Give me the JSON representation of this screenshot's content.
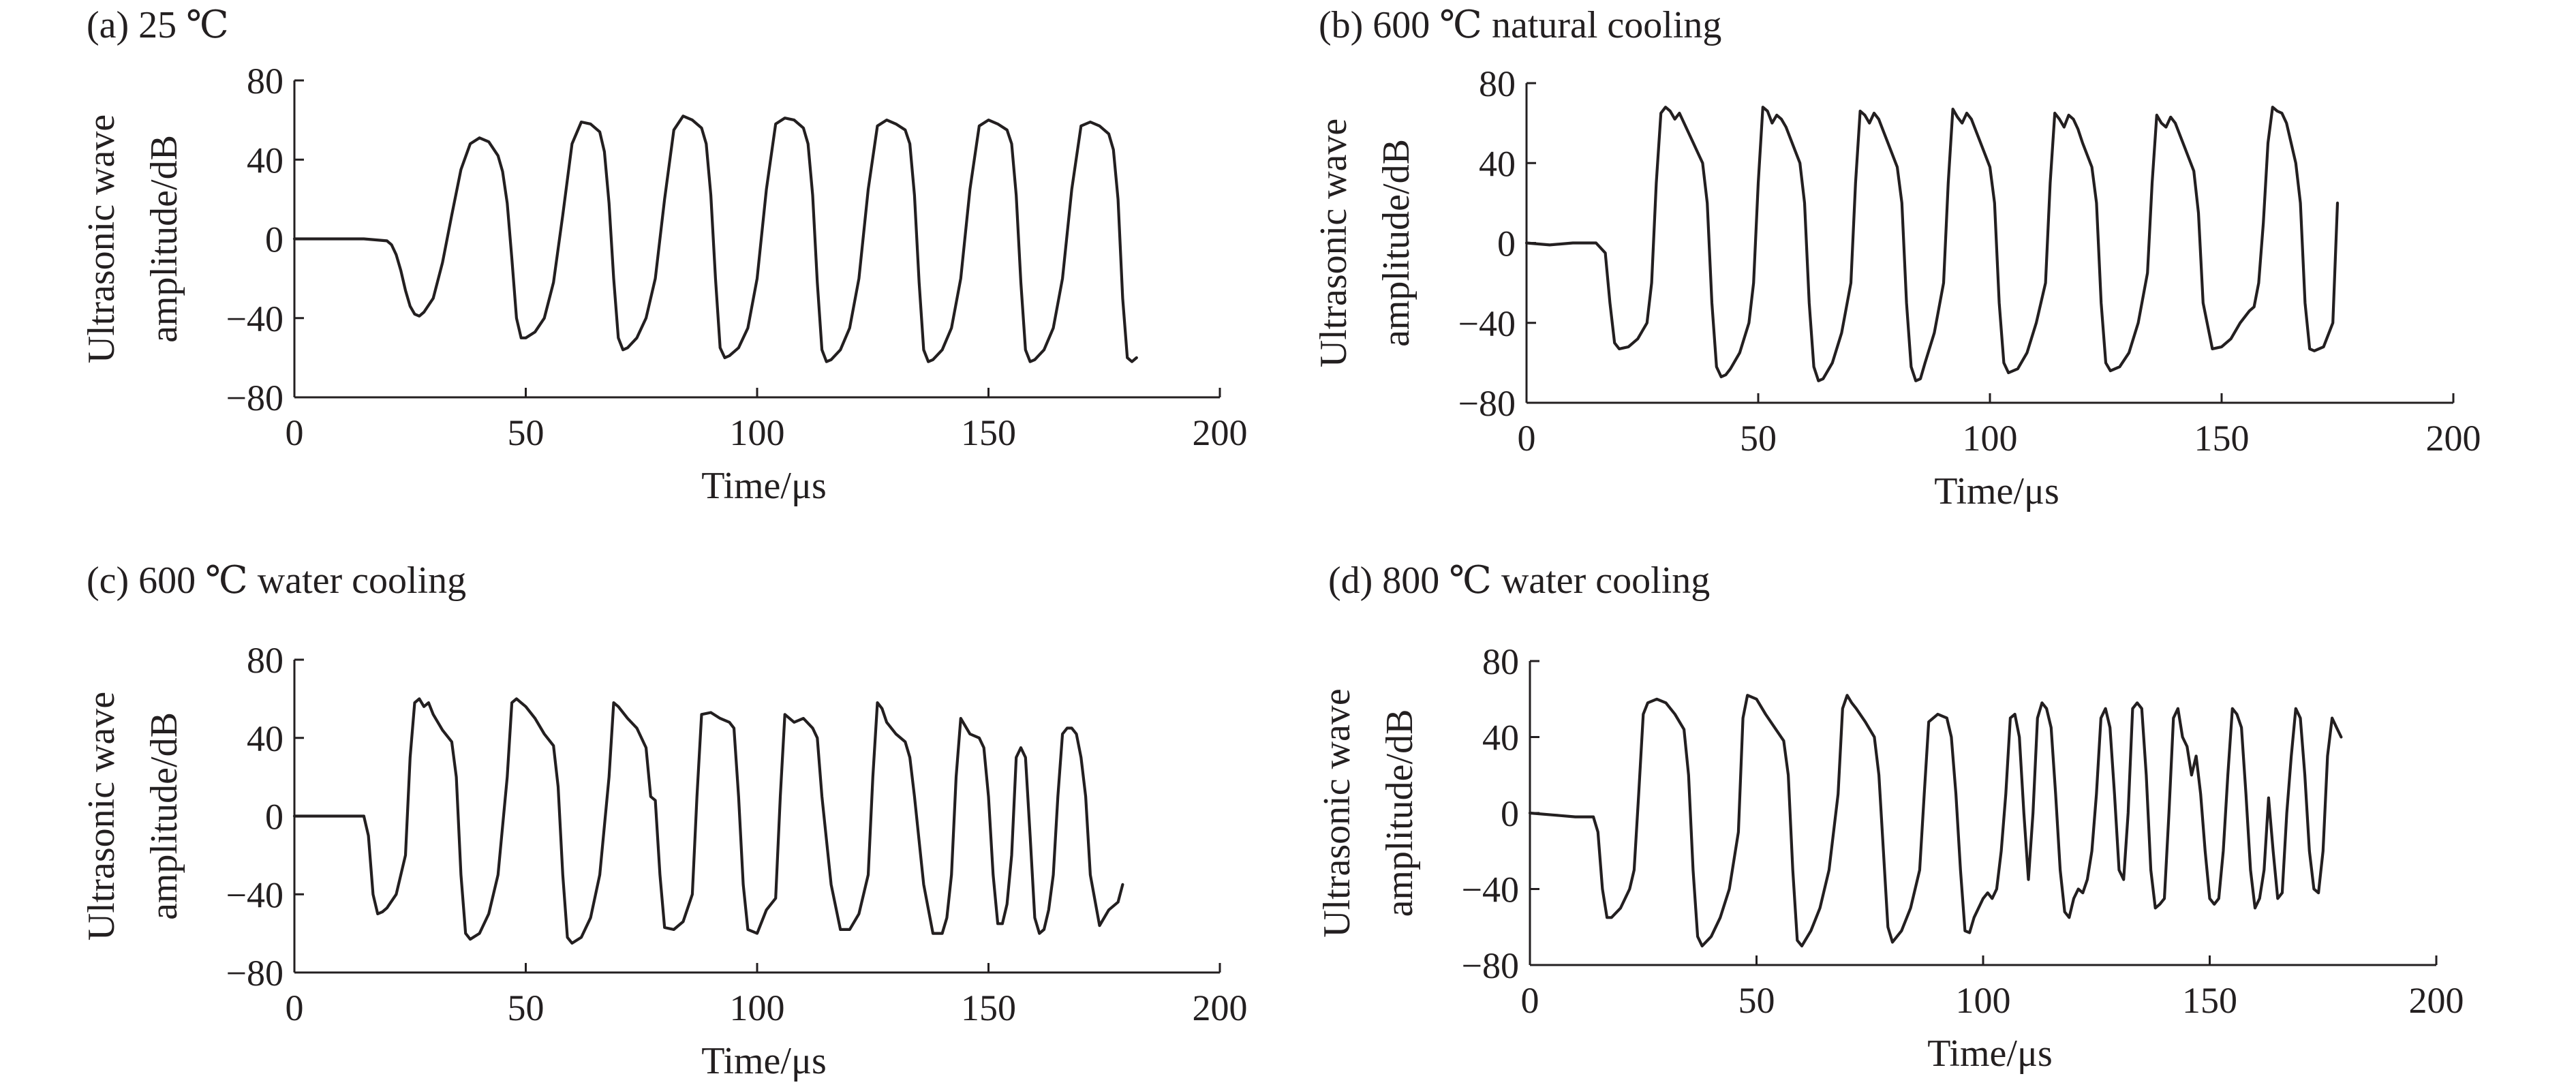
{
  "line_color": "#231f20",
  "background": "#ffffff",
  "chart_data": [
    {
      "type": "line",
      "title": "(a) 25 ℃",
      "xlabel": "Time/μs",
      "ylabel": [
        "Ultrasonic wave",
        "amplitude/dB"
      ],
      "xlim": [
        0,
        200
      ],
      "ylim": [
        -80,
        80
      ],
      "xticks": [
        0,
        50,
        100,
        150,
        200
      ],
      "yticks": [
        -80,
        -40,
        0,
        40,
        80
      ],
      "series": [
        {
          "x": [
            0,
            5,
            10,
            15,
            20,
            21,
            22,
            23,
            24,
            25,
            26,
            27,
            28,
            30,
            32,
            34,
            36,
            38,
            40,
            42,
            44,
            45,
            46,
            47,
            48,
            49,
            50,
            52,
            54,
            56,
            58,
            60,
            62,
            64,
            66,
            67,
            68,
            69,
            70,
            71,
            72,
            74,
            76,
            78,
            80,
            82,
            84,
            86,
            88,
            89,
            90,
            91,
            92,
            93,
            94,
            96,
            98,
            100,
            102,
            104,
            106,
            108,
            110,
            111,
            112,
            113,
            114,
            115,
            116,
            118,
            120,
            122,
            124,
            126,
            128,
            130,
            132,
            133,
            134,
            135,
            136,
            137,
            138,
            140,
            142,
            144,
            146,
            148,
            150,
            152,
            154,
            155,
            156,
            157,
            158,
            159,
            160,
            162,
            164,
            166,
            168,
            170,
            172,
            174,
            176,
            177,
            178,
            179,
            180,
            181,
            182
          ],
          "y": [
            0,
            0,
            0,
            0,
            -1,
            -3,
            -8,
            -16,
            -26,
            -34,
            -38,
            -39,
            -37,
            -30,
            -12,
            12,
            35,
            48,
            51,
            49,
            42,
            34,
            18,
            -10,
            -40,
            -50,
            -50,
            -47,
            -40,
            -22,
            12,
            48,
            59,
            58,
            54,
            44,
            18,
            -20,
            -50,
            -56,
            -55,
            -50,
            -40,
            -20,
            20,
            55,
            62,
            60,
            56,
            48,
            22,
            -20,
            -55,
            -60,
            -59,
            -55,
            -45,
            -20,
            25,
            58,
            61,
            60,
            56,
            48,
            22,
            -22,
            -56,
            -62,
            -61,
            -56,
            -45,
            -20,
            25,
            57,
            60,
            58,
            55,
            48,
            22,
            -22,
            -56,
            -62,
            -61,
            -56,
            -45,
            -20,
            25,
            57,
            60,
            58,
            55,
            48,
            22,
            -22,
            -56,
            -62,
            -61,
            -56,
            -45,
            -20,
            25,
            57,
            59,
            57,
            53,
            45,
            20,
            -30,
            -60,
            -62,
            -60
          ]
        }
      ]
    },
    {
      "type": "line",
      "title": "(b) 600 ℃ natural cooling",
      "xlabel": "Time/μs",
      "ylabel": [
        "Ultrasonic wave",
        "amplitude/dB"
      ],
      "xlim": [
        0,
        200
      ],
      "ylim": [
        -80,
        80
      ],
      "xticks": [
        0,
        50,
        100,
        150,
        200
      ],
      "yticks": [
        -80,
        -40,
        0,
        40,
        80
      ],
      "series": [
        {
          "x": [
            0,
            5,
            10,
            15,
            17,
            18,
            19,
            20,
            22,
            24,
            26,
            27,
            28,
            29,
            30,
            31,
            32,
            33,
            34,
            35,
            36,
            37,
            38,
            39,
            40,
            41,
            42,
            43,
            44,
            46,
            48,
            49,
            50,
            51,
            52,
            53,
            54,
            55,
            56,
            57,
            58,
            59,
            60,
            61,
            62,
            63,
            64,
            66,
            68,
            70,
            71,
            72,
            73,
            74,
            75,
            76,
            77,
            78,
            79,
            80,
            81,
            82,
            83,
            84,
            85,
            86,
            88,
            90,
            91,
            92,
            93,
            94,
            95,
            96,
            97,
            98,
            99,
            100,
            101,
            102,
            103,
            104,
            106,
            108,
            110,
            112,
            113,
            114,
            115,
            116,
            117,
            118,
            119,
            120,
            121,
            122,
            123,
            124,
            125,
            126,
            128,
            130,
            132,
            134,
            135,
            136,
            137,
            138,
            139,
            140,
            141,
            142,
            143,
            144,
            145,
            146,
            148,
            150,
            152,
            154,
            156,
            157,
            158,
            159,
            160,
            161,
            162,
            163,
            164,
            165,
            166,
            167,
            168,
            169,
            170,
            172,
            174,
            175
          ],
          "y": [
            0,
            -1,
            0,
            0,
            -5,
            -30,
            -50,
            -53,
            -52,
            -48,
            -40,
            -20,
            30,
            65,
            68,
            66,
            62,
            65,
            60,
            55,
            50,
            45,
            40,
            20,
            -30,
            -62,
            -67,
            -66,
            -63,
            -55,
            -40,
            -20,
            30,
            68,
            66,
            60,
            64,
            62,
            58,
            52,
            46,
            40,
            20,
            -30,
            -62,
            -69,
            -68,
            -60,
            -45,
            -20,
            30,
            66,
            64,
            60,
            65,
            62,
            56,
            50,
            44,
            38,
            20,
            -30,
            -62,
            -69,
            -68,
            -60,
            -45,
            -20,
            30,
            67,
            63,
            60,
            65,
            62,
            56,
            50,
            44,
            38,
            20,
            -30,
            -60,
            -65,
            -63,
            -55,
            -40,
            -20,
            30,
            65,
            62,
            58,
            64,
            62,
            57,
            50,
            44,
            38,
            20,
            -30,
            -60,
            -64,
            -62,
            -55,
            -40,
            -15,
            30,
            64,
            60,
            58,
            63,
            60,
            54,
            48,
            42,
            36,
            15,
            -30,
            -53,
            -52,
            -48,
            -40,
            -34,
            -32,
            -20,
            10,
            50,
            68,
            66,
            65,
            60,
            50,
            40,
            20,
            -30,
            -53,
            -54,
            -52,
            -40,
            20
          ]
        }
      ]
    },
    {
      "type": "line",
      "title": "(c) 600 ℃ water cooling",
      "xlabel": "Time/μs",
      "ylabel": [
        "Ultrasonic wave",
        "amplitude/dB"
      ],
      "xlim": [
        0,
        200
      ],
      "ylim": [
        -80,
        80
      ],
      "xticks": [
        0,
        50,
        100,
        150,
        200
      ],
      "yticks": [
        -80,
        -40,
        0,
        40,
        80
      ],
      "series": [
        {
          "x": [
            0,
            5,
            10,
            15,
            16,
            17,
            18,
            19,
            20,
            22,
            24,
            25,
            26,
            27,
            28,
            29,
            30,
            32,
            34,
            35,
            36,
            37,
            38,
            40,
            42,
            44,
            46,
            47,
            48,
            50,
            52,
            54,
            56,
            57,
            58,
            59,
            60,
            62,
            64,
            66,
            68,
            69,
            70,
            72,
            74,
            76,
            77,
            78,
            79,
            80,
            82,
            84,
            86,
            87,
            88,
            90,
            92,
            94,
            95,
            96,
            97,
            98,
            100,
            102,
            104,
            105,
            106,
            108,
            110,
            112,
            113,
            114,
            116,
            118,
            120,
            122,
            124,
            125,
            126,
            127,
            128,
            130,
            132,
            133,
            134,
            136,
            138,
            140,
            141,
            142,
            143,
            144,
            146,
            148,
            149,
            150,
            151,
            152,
            153,
            154,
            155,
            156,
            157,
            158,
            159,
            160,
            161,
            162,
            163,
            164,
            165,
            166,
            167,
            168,
            169,
            170,
            171,
            172,
            174,
            176,
            178,
            179
          ],
          "y": [
            0,
            0,
            0,
            0,
            -10,
            -40,
            -50,
            -49,
            -47,
            -40,
            -20,
            30,
            58,
            60,
            56,
            58,
            52,
            44,
            38,
            20,
            -30,
            -60,
            -63,
            -60,
            -50,
            -30,
            20,
            58,
            60,
            56,
            50,
            42,
            36,
            15,
            -30,
            -62,
            -65,
            -62,
            -52,
            -30,
            20,
            58,
            56,
            50,
            45,
            35,
            10,
            8,
            -30,
            -57,
            -58,
            -54,
            -40,
            10,
            52,
            53,
            50,
            48,
            45,
            10,
            -35,
            -58,
            -60,
            -48,
            -42,
            10,
            52,
            48,
            50,
            45,
            40,
            10,
            -35,
            -58,
            -58,
            -50,
            -30,
            20,
            58,
            55,
            48,
            42,
            38,
            30,
            10,
            -35,
            -60,
            -60,
            -52,
            -30,
            20,
            50,
            42,
            40,
            35,
            10,
            -30,
            -55,
            -55,
            -45,
            -20,
            30,
            35,
            30,
            -10,
            -52,
            -60,
            -58,
            -48,
            -30,
            10,
            42,
            45,
            45,
            42,
            30,
            10,
            -30,
            -56,
            -48,
            -44,
            -35
          ]
        }
      ]
    },
    {
      "type": "line",
      "title": "(d) 800 ℃ water cooling",
      "xlabel": "Time/μs",
      "ylabel": [
        "Ultrasonic wave",
        "amplitude/dB"
      ],
      "xlim": [
        0,
        200
      ],
      "ylim": [
        -80,
        80
      ],
      "xticks": [
        0,
        50,
        100,
        150,
        200
      ],
      "yticks": [
        -80,
        -40,
        0,
        40,
        80
      ],
      "series": [
        {
          "x": [
            0,
            5,
            10,
            14,
            15,
            16,
            17,
            18,
            20,
            22,
            23,
            24,
            25,
            26,
            28,
            30,
            32,
            34,
            35,
            36,
            37,
            38,
            40,
            42,
            44,
            46,
            47,
            48,
            50,
            52,
            54,
            56,
            57,
            58,
            59,
            60,
            62,
            64,
            66,
            68,
            69,
            70,
            71,
            72,
            74,
            76,
            77,
            78,
            79,
            80,
            82,
            84,
            86,
            87,
            88,
            90,
            92,
            93,
            94,
            95,
            96,
            97,
            98,
            100,
            101,
            102,
            103,
            104,
            105,
            106,
            107,
            108,
            109,
            110,
            111,
            112,
            113,
            114,
            115,
            116,
            117,
            118,
            119,
            120,
            121,
            122,
            123,
            124,
            125,
            126,
            127,
            128,
            129,
            130,
            131,
            132,
            133,
            134,
            135,
            136,
            137,
            138,
            139,
            140,
            141,
            142,
            143,
            144,
            145,
            146,
            147,
            148,
            149,
            150,
            151,
            152,
            153,
            154,
            155,
            156,
            157,
            158,
            159,
            160,
            161,
            162,
            163,
            164,
            165,
            166,
            167,
            168,
            169,
            170,
            171,
            172,
            173,
            174,
            175,
            176,
            177,
            178,
            179
          ],
          "y": [
            0,
            -1,
            -2,
            -2,
            -10,
            -40,
            -55,
            -55,
            -50,
            -40,
            -30,
            10,
            52,
            58,
            60,
            58,
            52,
            44,
            20,
            -30,
            -65,
            -70,
            -65,
            -55,
            -40,
            -10,
            50,
            62,
            60,
            52,
            45,
            38,
            20,
            -30,
            -67,
            -70,
            -62,
            -50,
            -30,
            10,
            55,
            62,
            58,
            55,
            48,
            40,
            20,
            -20,
            -60,
            -68,
            -62,
            -50,
            -30,
            10,
            48,
            52,
            50,
            40,
            10,
            -30,
            -62,
            -63,
            -55,
            -45,
            -42,
            -45,
            -40,
            -20,
            10,
            50,
            52,
            40,
            0,
            -35,
            0,
            50,
            58,
            55,
            45,
            10,
            -30,
            -52,
            -55,
            -45,
            -40,
            -42,
            -35,
            -20,
            10,
            50,
            55,
            45,
            10,
            -30,
            -35,
            0,
            55,
            58,
            55,
            20,
            -30,
            -50,
            -48,
            -45,
            0,
            50,
            55,
            40,
            35,
            20,
            30,
            10,
            -20,
            -45,
            -48,
            -45,
            -20,
            20,
            55,
            52,
            45,
            10,
            -30,
            -50,
            -45,
            -30,
            8,
            -20,
            -45,
            -42,
            0,
            30,
            55,
            50,
            20,
            -20,
            -40,
            -42,
            -20,
            30,
            50,
            45,
            40
          ]
        }
      ]
    }
  ]
}
